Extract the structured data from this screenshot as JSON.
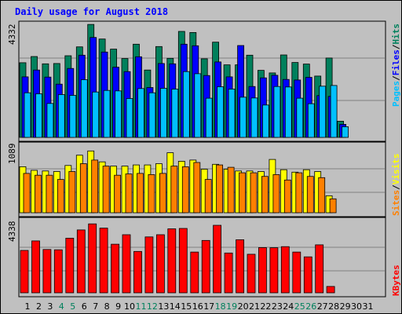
{
  "title": "Daily usage for August 2018",
  "colors": {
    "hits": "#00805c",
    "files": "#0000ff",
    "pages": "#00c0ff",
    "visits": "#ffff00",
    "sites": "#ff8000",
    "kbytes": "#ff0000",
    "weekend_day": "#00805c",
    "weekday": "#000000",
    "grid": "#808080",
    "panel_bg": "#c0c0c0"
  },
  "chart_data": [
    {
      "type": "bar",
      "panel": "traffic",
      "ymax_label": "4332",
      "ylim": [
        0,
        4332
      ],
      "categories": [
        "1",
        "2",
        "3",
        "4",
        "5",
        "6",
        "7",
        "8",
        "9",
        "10",
        "11",
        "12",
        "13",
        "14",
        "15",
        "16",
        "17",
        "18",
        "19",
        "20",
        "21",
        "22",
        "23",
        "24",
        "25",
        "26",
        "27",
        "28",
        "29",
        "30",
        "31"
      ],
      "series": [
        {
          "name": "Hits",
          "values": [
            2860,
            3100,
            2820,
            2830,
            3130,
            3470,
            4330,
            3770,
            3380,
            3020,
            3570,
            2580,
            3480,
            3030,
            4060,
            4020,
            3010,
            3650,
            2780,
            2780,
            3150,
            2570,
            2470,
            3160,
            2870,
            2810,
            2350,
            3040,
            620,
            null,
            null
          ]
        },
        {
          "name": "Files",
          "values": [
            2320,
            2580,
            2310,
            2040,
            2640,
            3150,
            3830,
            3270,
            2690,
            2520,
            3090,
            1910,
            2830,
            2820,
            3570,
            3510,
            2370,
            2890,
            2320,
            3520,
            1950,
            2280,
            2380,
            2220,
            2200,
            2300,
            1600,
            1570,
            500,
            null,
            null
          ]
        },
        {
          "name": "Pages",
          "values": [
            1710,
            1670,
            1300,
            1640,
            1610,
            2210,
            1740,
            1800,
            1780,
            1490,
            1870,
            1710,
            1880,
            1850,
            2520,
            2440,
            1500,
            1940,
            1850,
            1540,
            1510,
            1240,
            1950,
            1930,
            1500,
            1290,
            1960,
            1990,
            410,
            null,
            null
          ]
        }
      ]
    },
    {
      "type": "bar",
      "panel": "visitors",
      "ymax_label": "1089",
      "ylim": [
        0,
        1089
      ],
      "categories": [
        "1",
        "2",
        "3",
        "4",
        "5",
        "6",
        "7",
        "8",
        "9",
        "10",
        "11",
        "12",
        "13",
        "14",
        "15",
        "16",
        "17",
        "18",
        "19",
        "20",
        "21",
        "22",
        "23",
        "24",
        "25",
        "26",
        "27",
        "28",
        "29",
        "30",
        "31"
      ],
      "series": [
        {
          "name": "Visits",
          "values": [
            760,
            700,
            690,
            680,
            780,
            950,
            1020,
            840,
            770,
            770,
            790,
            790,
            810,
            990,
            850,
            870,
            720,
            800,
            720,
            690,
            690,
            680,
            880,
            710,
            670,
            710,
            680,
            280,
            null,
            null,
            null
          ]
        },
        {
          "name": "Sites",
          "values": [
            650,
            620,
            620,
            550,
            680,
            810,
            870,
            770,
            620,
            640,
            650,
            630,
            650,
            770,
            760,
            830,
            550,
            790,
            750,
            660,
            660,
            600,
            630,
            540,
            660,
            600,
            580,
            230,
            null,
            null,
            null
          ]
        }
      ]
    },
    {
      "type": "bar",
      "panel": "kbytes",
      "ymax_label": "4338",
      "ylim": [
        0,
        4338
      ],
      "categories": [
        "1",
        "2",
        "3",
        "4",
        "5",
        "6",
        "7",
        "8",
        "9",
        "10",
        "11",
        "12",
        "13",
        "14",
        "15",
        "16",
        "17",
        "18",
        "19",
        "20",
        "21",
        "22",
        "23",
        "24",
        "25",
        "26",
        "27",
        "28",
        "29",
        "30",
        "31"
      ],
      "series": [
        {
          "name": "KBytes",
          "values": [
            2660,
            3260,
            2720,
            2700,
            3430,
            3950,
            4330,
            4060,
            3050,
            3650,
            2600,
            3510,
            3650,
            4020,
            4040,
            2560,
            3290,
            4240,
            2500,
            3330,
            2420,
            2840,
            2830,
            2900,
            2560,
            2260,
            3010,
            400,
            null,
            null,
            null
          ]
        }
      ]
    }
  ],
  "legend": {
    "pages": "Pages",
    "files": "Files",
    "hits": "Hits",
    "sites": "Sites",
    "visits": "Visits",
    "kbytes": "KBytes",
    "sep": "/"
  },
  "weekend_days": [
    "4",
    "5",
    "11",
    "12",
    "18",
    "19",
    "25",
    "26"
  ]
}
